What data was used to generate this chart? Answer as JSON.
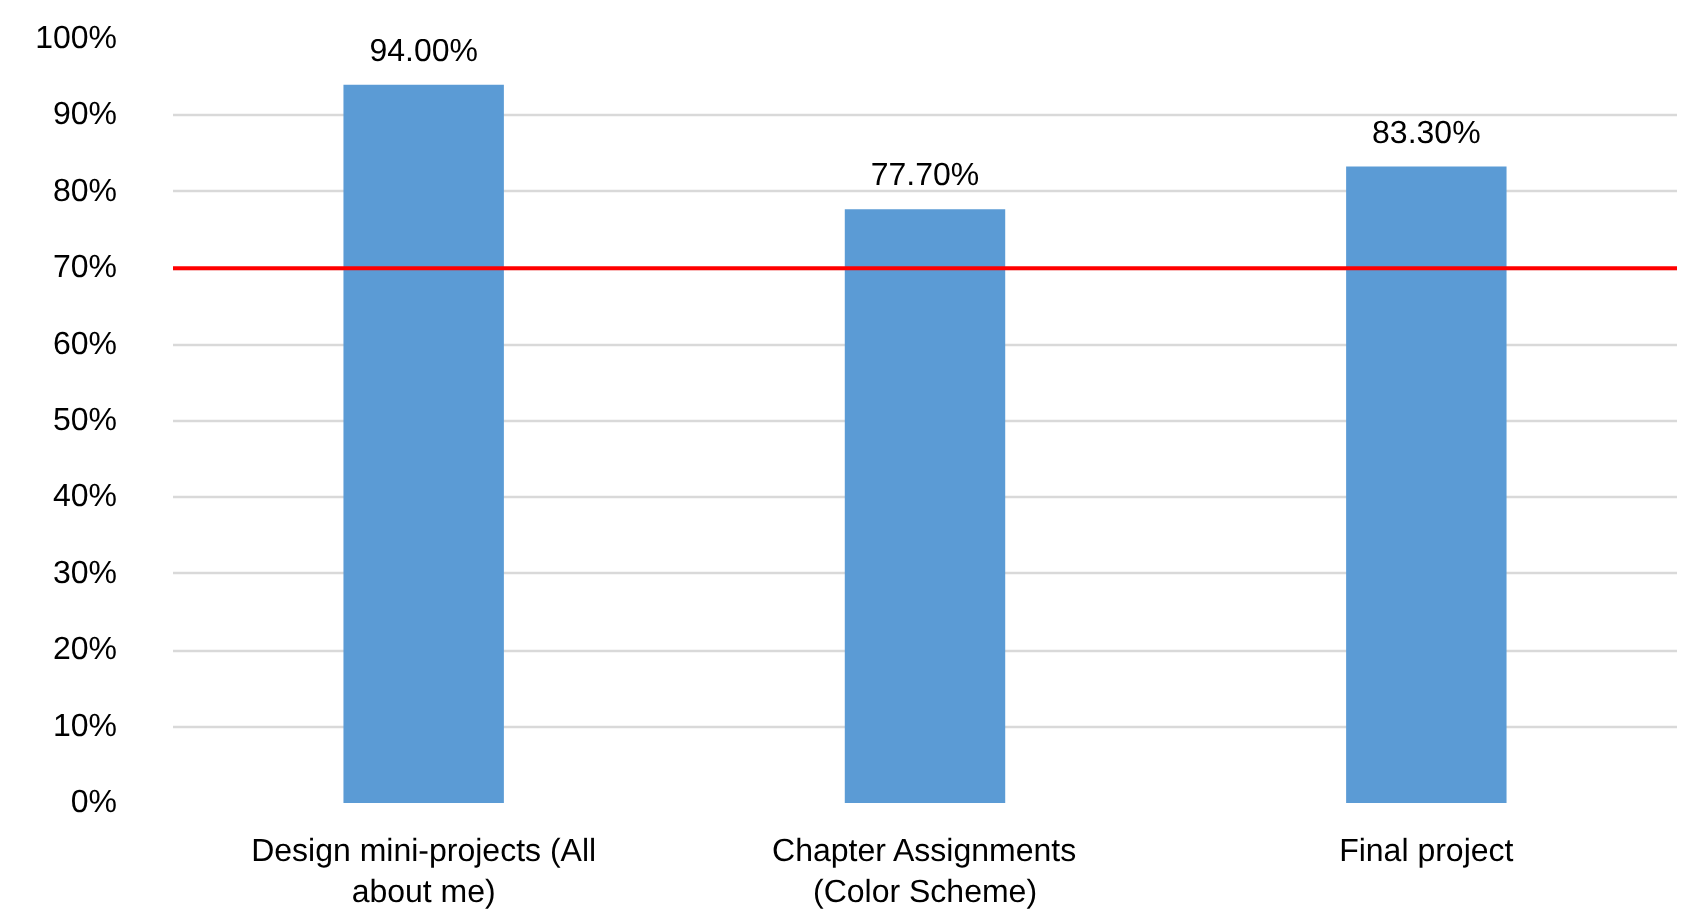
{
  "chart_data": {
    "type": "bar",
    "categories": [
      "Design mini-projects (All about me)",
      "Chapter Assignments (Color Scheme)",
      "Final project"
    ],
    "values": [
      94.0,
      77.7,
      83.3
    ],
    "color": "#5b9bd5",
    "value_labels": [
      "94.00%",
      "77.70%",
      "83.30%"
    ],
    "ylim": [
      0,
      100
    ],
    "yticks": [
      {
        "value": 0,
        "label": "0%"
      },
      {
        "value": 10,
        "label": "10%"
      },
      {
        "value": 20,
        "label": "20%"
      },
      {
        "value": 30,
        "label": "30%"
      },
      {
        "value": 40,
        "label": "40%"
      },
      {
        "value": 50,
        "label": "50%"
      },
      {
        "value": 60,
        "label": "60%"
      },
      {
        "value": 70,
        "label": "70%"
      },
      {
        "value": 80,
        "label": "80%"
      },
      {
        "value": 90,
        "label": "90%"
      },
      {
        "value": 100,
        "label": "100%"
      }
    ],
    "grid": "y",
    "ref_lines": [
      {
        "axis": "y",
        "value": 70,
        "color": "#ff0000"
      }
    ]
  }
}
